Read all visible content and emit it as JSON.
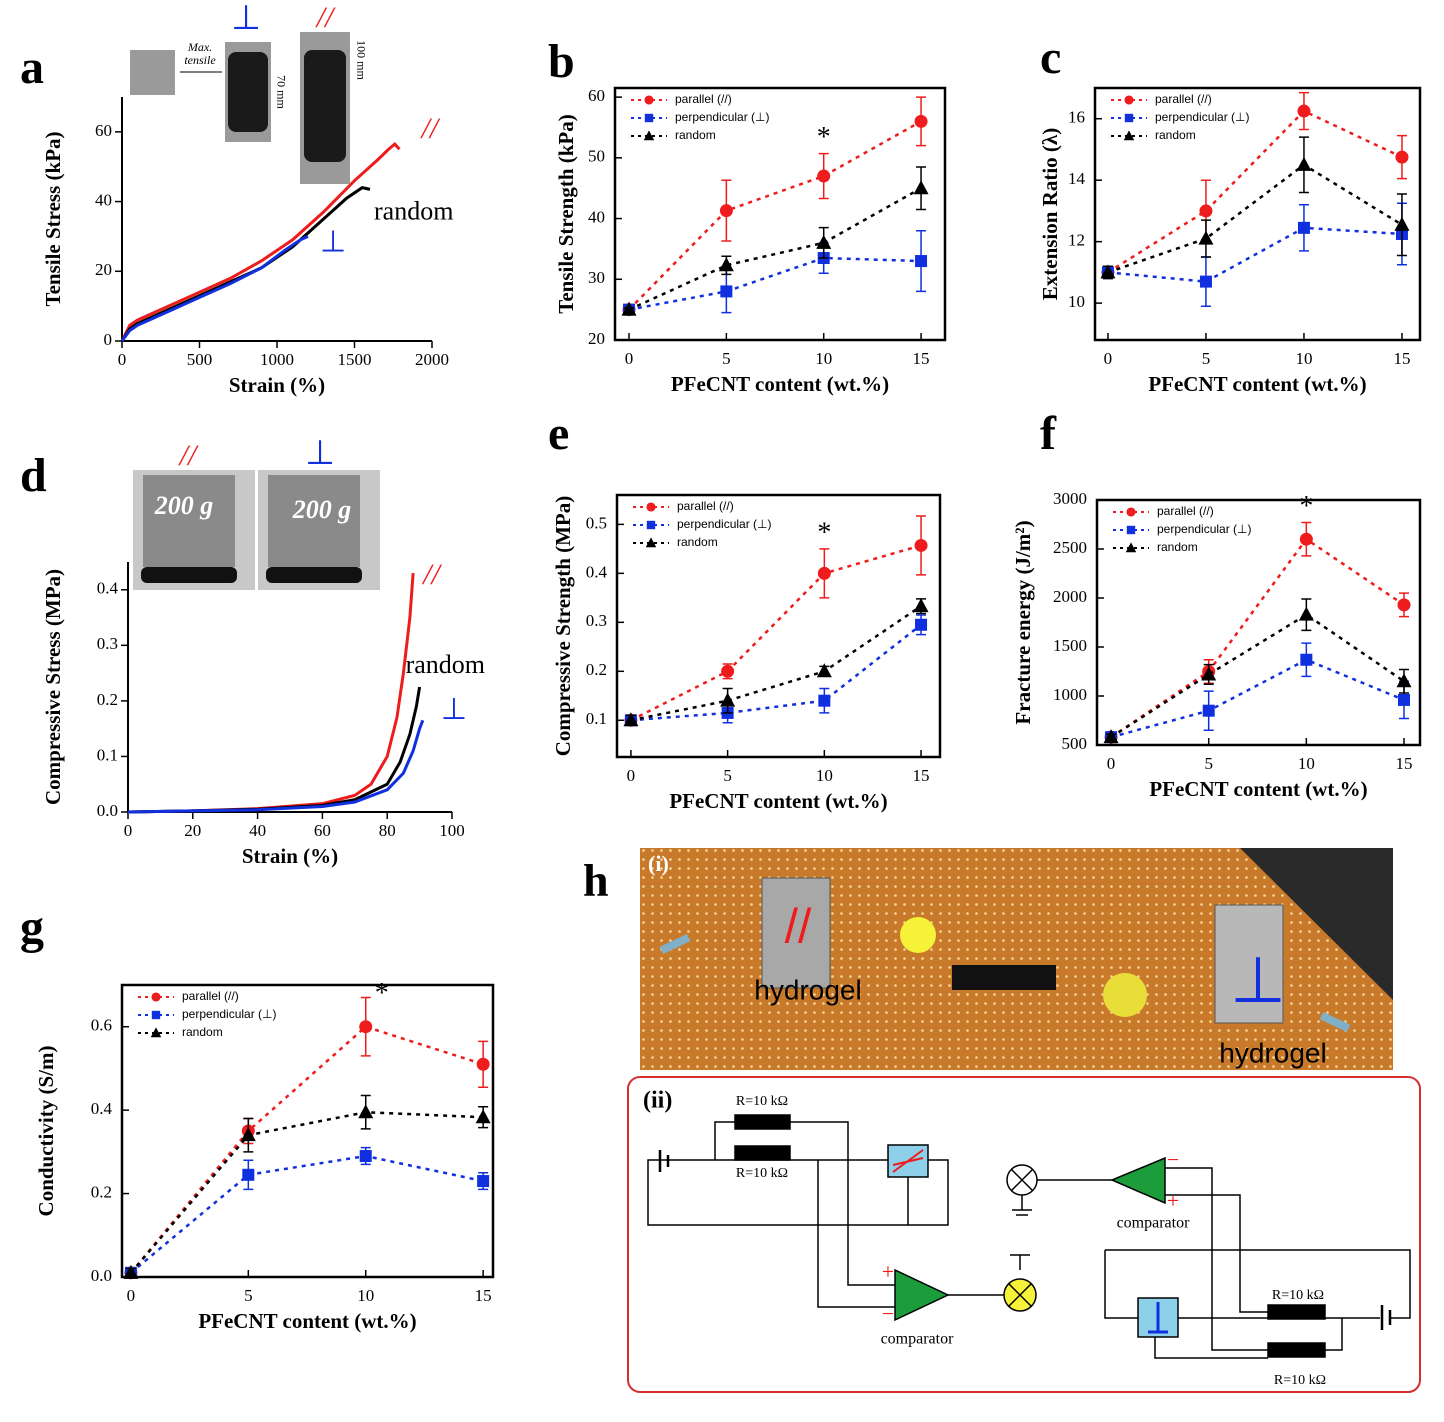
{
  "chart_data": [
    {
      "panel": "a",
      "type": "line",
      "xlabel": "Strain (%)",
      "ylabel": "Tensile Stress (kPa)",
      "xlim": [
        0,
        2000
      ],
      "ylim": [
        0,
        70
      ],
      "xticks": [
        0,
        500,
        1000,
        1500,
        2000
      ],
      "yticks": [
        0,
        20,
        40,
        60
      ],
      "inset_texts": [
        "Max.",
        "tensile",
        "⊥",
        "//",
        "70 mm",
        "100 mm"
      ],
      "series": [
        {
          "name": "//",
          "color": "#ee1c1c",
          "x": [
            0,
            50,
            100,
            300,
            500,
            700,
            900,
            1100,
            1300,
            1500,
            1650,
            1720,
            1760,
            1790
          ],
          "values": [
            0,
            4.5,
            6,
            10,
            14,
            18,
            23,
            29,
            37,
            46,
            52,
            55,
            56.5,
            55
          ]
        },
        {
          "name": "random",
          "color": "#000000",
          "x": [
            0,
            50,
            100,
            300,
            500,
            700,
            900,
            1100,
            1300,
            1450,
            1550,
            1600
          ],
          "values": [
            0,
            3.5,
            5,
            9,
            13,
            17,
            21,
            27,
            35,
            41,
            44,
            43.5
          ]
        },
        {
          "name": "⊥",
          "color": "#1030e0",
          "x": [
            0,
            50,
            100,
            300,
            500,
            700,
            900,
            1050,
            1150,
            1200
          ],
          "values": [
            0,
            3,
            4.5,
            8.5,
            12.5,
            16.5,
            21,
            26,
            29,
            30
          ]
        }
      ]
    },
    {
      "panel": "b",
      "type": "line",
      "xlabel": "PFeCNT content (wt.%)",
      "ylabel": "Tensile Strength (kPa)",
      "legend": "upper left",
      "annotation": "*",
      "x": [
        0,
        5,
        10,
        15
      ],
      "xlim": [
        -0.72,
        16.23
      ],
      "ylim": [
        20,
        61.5
      ],
      "xticks": [
        0,
        5,
        10,
        15
      ],
      "yticks": [
        20,
        30,
        40,
        50,
        60
      ],
      "series": [
        {
          "name": "parallel (//)",
          "color": "#ee1c1c",
          "marker": "circle",
          "values": [
            25,
            41.3,
            47,
            56
          ],
          "errors": [
            0.3,
            5,
            3.7,
            4
          ]
        },
        {
          "name": "perpendicular (⊥)",
          "color": "#1030e0",
          "marker": "square",
          "values": [
            25,
            28,
            33.5,
            33
          ],
          "errors": [
            0.3,
            3.5,
            2.5,
            5
          ]
        },
        {
          "name": "random",
          "color": "#000000",
          "marker": "triangle",
          "values": [
            25,
            32.3,
            36,
            45
          ],
          "errors": [
            0.3,
            1.5,
            2.5,
            3.5
          ]
        }
      ]
    },
    {
      "panel": "c",
      "type": "line",
      "xlabel": "PFeCNT content (wt.%)",
      "ylabel": "Extension Ratio (λ)",
      "legend": "upper left",
      "x": [
        0,
        5,
        10,
        15
      ],
      "xlim": [
        -0.66,
        15.92
      ],
      "ylim": [
        8.8,
        17
      ],
      "xticks": [
        0,
        5,
        10,
        15
      ],
      "yticks": [
        10,
        12,
        14,
        16
      ],
      "series": [
        {
          "name": "parallel (//)",
          "color": "#ee1c1c",
          "marker": "circle",
          "values": [
            11,
            13,
            16.25,
            14.75
          ],
          "errors": [
            0.2,
            1,
            0.6,
            0.7
          ]
        },
        {
          "name": "perpendicular (⊥)",
          "color": "#1030e0",
          "marker": "square",
          "values": [
            11,
            10.7,
            12.45,
            12.25
          ],
          "errors": [
            0.2,
            0.8,
            0.75,
            1
          ]
        },
        {
          "name": "random",
          "color": "#000000",
          "marker": "triangle",
          "values": [
            11,
            12.1,
            14.5,
            12.55
          ],
          "errors": [
            0.2,
            0.6,
            0.9,
            1
          ]
        }
      ]
    },
    {
      "panel": "d",
      "type": "line",
      "xlabel": "Strain (%)",
      "ylabel": "Compressive Stress (MPa)",
      "xlim": [
        0,
        100
      ],
      "ylim": [
        0,
        0.45
      ],
      "xticks": [
        0,
        20,
        40,
        60,
        80,
        100
      ],
      "yticks": [
        {
          "value": 0,
          "label": "0.0"
        },
        0.1,
        0.2,
        0.3,
        0.4
      ],
      "inset_texts": [
        "//",
        "⊥",
        "200 g",
        "200 g"
      ],
      "series": [
        {
          "name": "//",
          "color": "#ee1c1c",
          "x": [
            0,
            20,
            40,
            60,
            70,
            75,
            80,
            83,
            85,
            87,
            88
          ],
          "values": [
            0,
            0.002,
            0.006,
            0.015,
            0.03,
            0.05,
            0.1,
            0.17,
            0.25,
            0.35,
            0.43
          ]
        },
        {
          "name": "random",
          "color": "#000000",
          "x": [
            0,
            20,
            40,
            60,
            70,
            80,
            84,
            87,
            89,
            90
          ],
          "values": [
            0,
            0.002,
            0.005,
            0.012,
            0.022,
            0.05,
            0.09,
            0.14,
            0.19,
            0.225
          ]
        },
        {
          "name": "⊥",
          "color": "#1030e0",
          "x": [
            0,
            20,
            40,
            60,
            70,
            80,
            85,
            88,
            90,
            91
          ],
          "values": [
            0,
            0.002,
            0.004,
            0.01,
            0.018,
            0.04,
            0.07,
            0.11,
            0.15,
            0.165
          ]
        }
      ]
    },
    {
      "panel": "e",
      "type": "line",
      "xlabel": "PFeCNT content (wt.%)",
      "ylabel": "Compressive Strength (MPa)",
      "legend": "upper left",
      "annotation": "*",
      "x": [
        0,
        5,
        10,
        15
      ],
      "xlim": [
        -0.72,
        15.98
      ],
      "ylim": [
        0.025,
        0.56
      ],
      "xticks": [
        0,
        5,
        10,
        15
      ],
      "yticks": [
        0.1,
        0.2,
        0.3,
        0.4,
        0.5
      ],
      "series": [
        {
          "name": "parallel (//)",
          "color": "#ee1c1c",
          "marker": "circle",
          "values": [
            0.1,
            0.2,
            0.4,
            0.457
          ],
          "errors": [
            0.01,
            0.015,
            0.05,
            0.06
          ]
        },
        {
          "name": "perpendicular (⊥)",
          "color": "#1030e0",
          "marker": "square",
          "values": [
            0.1,
            0.115,
            0.14,
            0.295
          ],
          "errors": [
            0.01,
            0.02,
            0.025,
            0.02
          ]
        },
        {
          "name": "random",
          "color": "#000000",
          "marker": "triangle",
          "values": [
            0.1,
            0.14,
            0.2,
            0.333
          ],
          "errors": [
            0.01,
            0.025,
            0.01,
            0.015
          ]
        }
      ]
    },
    {
      "panel": "f",
      "type": "line",
      "xlabel": "PFeCNT content (wt.%)",
      "ylabel": "Fracture energy (J/m²)",
      "legend": "upper left",
      "annotation": "*",
      "x": [
        0,
        5,
        10,
        15
      ],
      "xlim": [
        -0.72,
        15.82
      ],
      "ylim": [
        500,
        3000
      ],
      "xticks": [
        0,
        5,
        10,
        15
      ],
      "yticks": [
        500,
        1000,
        1500,
        2000,
        2500,
        3000
      ],
      "series": [
        {
          "name": "parallel (//)",
          "color": "#ee1c1c",
          "marker": "circle",
          "values": [
            580,
            1250,
            2600,
            1930
          ],
          "errors": [
            30,
            120,
            170,
            120
          ]
        },
        {
          "name": "perpendicular (⊥)",
          "color": "#1030e0",
          "marker": "square",
          "values": [
            580,
            850,
            1370,
            960
          ],
          "errors": [
            30,
            200,
            170,
            190
          ]
        },
        {
          "name": "random",
          "color": "#000000",
          "marker": "triangle",
          "values": [
            580,
            1220,
            1830,
            1150
          ],
          "errors": [
            30,
            100,
            160,
            120
          ]
        }
      ]
    },
    {
      "panel": "g",
      "type": "line",
      "xlabel": "PFeCNT content (wt.%)",
      "ylabel": "Conductivity (S/m)",
      "legend": "upper left",
      "annotation": "*",
      "x": [
        0,
        5,
        10,
        15
      ],
      "xlim": [
        -0.38,
        15.42
      ],
      "ylim": [
        0,
        0.7
      ],
      "xticks": [
        0,
        5,
        10,
        15
      ],
      "yticks": [
        {
          "value": 0,
          "label": "0.0"
        },
        0.2,
        0.4,
        0.6
      ],
      "series": [
        {
          "name": "parallel (//)",
          "color": "#ee1c1c",
          "marker": "circle",
          "values": [
            0.01,
            0.35,
            0.6,
            0.51
          ],
          "errors": [
            0.01,
            0.03,
            0.07,
            0.055
          ]
        },
        {
          "name": "perpendicular (⊥)",
          "color": "#1030e0",
          "marker": "square",
          "values": [
            0.01,
            0.245,
            0.29,
            0.23
          ],
          "errors": [
            0.01,
            0.035,
            0.02,
            0.02
          ]
        },
        {
          "name": "random",
          "color": "#000000",
          "marker": "triangle",
          "values": [
            0.01,
            0.34,
            0.395,
            0.383
          ],
          "errors": [
            0.01,
            0.04,
            0.04,
            0.025
          ]
        }
      ]
    }
  ],
  "panel_h": {
    "panel": "h",
    "photo": {
      "label": "(i)",
      "symbols": [
        "//",
        "⊥"
      ],
      "texts": [
        "hydrogel",
        "hydrogel"
      ]
    },
    "circuit": {
      "label": "(ii)",
      "resistors": [
        "R=10 kΩ",
        "R=10 kΩ",
        "R=10 kΩ",
        "R=10 kΩ"
      ],
      "comparators": [
        "comparator",
        "comparator"
      ],
      "signs": [
        "+",
        "−",
        "−",
        "+"
      ]
    }
  }
}
